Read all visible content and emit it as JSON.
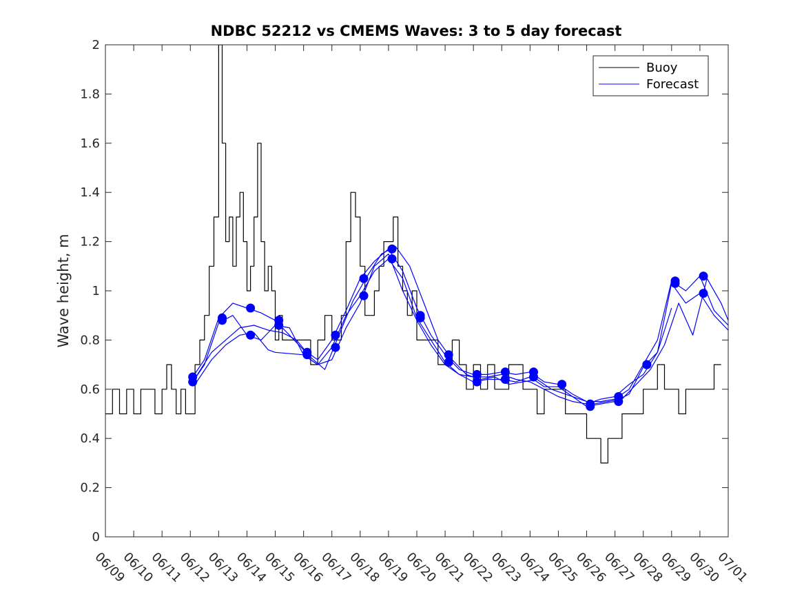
{
  "chart_data": {
    "type": "line",
    "title": "NDBC 52212 vs CMEMS Waves: 3 to 5 day forecast",
    "xlabel": "",
    "ylabel": "Wave height, m",
    "xlim": [
      "06/09",
      "07/01"
    ],
    "ylim": [
      0,
      2
    ],
    "x_ticks": [
      "06/09",
      "06/10",
      "06/11",
      "06/12",
      "06/13",
      "06/14",
      "06/15",
      "06/16",
      "06/17",
      "06/18",
      "06/19",
      "06/20",
      "06/21",
      "06/22",
      "06/23",
      "06/24",
      "06/25",
      "06/26",
      "06/27",
      "06/28",
      "06/29",
      "06/30",
      "07/01"
    ],
    "y_ticks": [
      0,
      0.2,
      0.4,
      0.6,
      0.8,
      1,
      1.2,
      1.4,
      1.6,
      1.8,
      2
    ],
    "grid": false,
    "legend": {
      "position": "top-right",
      "entries": [
        "Buoy",
        "Forecast"
      ]
    },
    "colors": {
      "buoy": "#000000",
      "forecast": "#0000ff"
    },
    "series": [
      {
        "name": "Buoy",
        "style": "step",
        "x": [
          "06/09 00:00",
          "06/09 06:00",
          "06/09 12:00",
          "06/09 18:00",
          "06/10 00:00",
          "06/10 06:00",
          "06/10 12:00",
          "06/10 18:00",
          "06/11 00:00",
          "06/11 04:00",
          "06/11 08:00",
          "06/11 12:00",
          "06/11 16:00",
          "06/11 20:00",
          "06/12 00:00",
          "06/12 04:00",
          "06/12 08:00",
          "06/12 12:00",
          "06/12 16:00",
          "06/12 20:00",
          "06/13 00:00",
          "06/13 03:00",
          "06/13 06:00",
          "06/13 09:00",
          "06/13 12:00",
          "06/13 15:00",
          "06/13 18:00",
          "06/13 21:00",
          "06/14 00:00",
          "06/14 03:00",
          "06/14 06:00",
          "06/14 09:00",
          "06/14 12:00",
          "06/14 15:00",
          "06/14 18:00",
          "06/14 21:00",
          "06/15 00:00",
          "06/15 03:00",
          "06/15 06:00",
          "06/15 09:00",
          "06/15 12:00",
          "06/15 18:00",
          "06/16 00:00",
          "06/16 06:00",
          "06/16 12:00",
          "06/16 18:00",
          "06/17 00:00",
          "06/17 04:00",
          "06/17 08:00",
          "06/17 12:00",
          "06/17 16:00",
          "06/17 20:00",
          "06/18 00:00",
          "06/18 04:00",
          "06/18 08:00",
          "06/18 12:00",
          "06/18 16:00",
          "06/18 20:00",
          "06/19 00:00",
          "06/19 04:00",
          "06/19 08:00",
          "06/19 12:00",
          "06/19 16:00",
          "06/19 20:00",
          "06/20 00:00",
          "06/20 06:00",
          "06/20 12:00",
          "06/20 18:00",
          "06/21 00:00",
          "06/21 06:00",
          "06/21 12:00",
          "06/21 18:00",
          "06/22 00:00",
          "06/22 06:00",
          "06/22 12:00",
          "06/22 18:00",
          "06/23 00:00",
          "06/23 06:00",
          "06/23 12:00",
          "06/23 18:00",
          "06/24 00:00",
          "06/24 06:00",
          "06/24 12:00",
          "06/24 18:00",
          "06/25 00:00",
          "06/25 06:00",
          "06/25 12:00",
          "06/25 18:00",
          "06/26 00:00",
          "06/26 06:00",
          "06/26 12:00",
          "06/26 18:00",
          "06/27 00:00",
          "06/27 06:00",
          "06/27 12:00",
          "06/27 18:00",
          "06/28 00:00",
          "06/28 06:00",
          "06/28 12:00",
          "06/28 18:00",
          "06/29 00:00",
          "06/29 06:00",
          "06/29 12:00",
          "06/29 18:00",
          "06/30 00:00",
          "06/30 06:00",
          "06/30 12:00"
        ],
        "values": [
          0.5,
          0.6,
          0.5,
          0.6,
          0.5,
          0.6,
          0.6,
          0.5,
          0.6,
          0.7,
          0.6,
          0.5,
          0.6,
          0.5,
          0.5,
          0.7,
          0.8,
          0.9,
          1.1,
          1.3,
          2.0,
          1.6,
          1.2,
          1.3,
          1.1,
          1.3,
          1.4,
          1.2,
          1.0,
          1.1,
          1.3,
          1.6,
          1.2,
          1.0,
          1.1,
          1.0,
          0.8,
          0.9,
          0.8,
          0.8,
          0.8,
          0.8,
          0.8,
          0.7,
          0.8,
          0.9,
          0.8,
          0.8,
          0.9,
          1.2,
          1.4,
          1.3,
          1.1,
          0.9,
          0.9,
          1.0,
          1.1,
          1.2,
          1.2,
          1.3,
          1.1,
          1.0,
          0.9,
          1.0,
          0.8,
          0.8,
          0.8,
          0.7,
          0.7,
          0.8,
          0.7,
          0.6,
          0.7,
          0.6,
          0.7,
          0.6,
          0.6,
          0.7,
          0.7,
          0.6,
          0.6,
          0.5,
          0.6,
          0.6,
          0.6,
          0.5,
          0.5,
          0.5,
          0.4,
          0.4,
          0.3,
          0.4,
          0.4,
          0.5,
          0.5,
          0.5,
          0.6,
          0.6,
          0.7,
          0.6,
          0.6,
          0.5,
          0.6,
          0.6,
          0.6,
          0.6,
          0.7
        ]
      },
      {
        "name": "Forecast",
        "x": [
          "06/12 02:00",
          "06/12 12:00",
          "06/13 00:00",
          "06/13 12:00",
          "06/14 00:00",
          "06/14 12:00",
          "06/15 00:00",
          "06/15 12:00",
          "06/16 00:00",
          "06/16 12:00",
          "06/17 00:00",
          "06/17 12:00",
          "06/18 00:00",
          "06/18 12:00",
          "06/19 00:00",
          "06/19 12:00",
          "06/20 00:00",
          "06/20 12:00",
          "06/21 00:00",
          "06/21 12:00",
          "06/22 00:00",
          "06/22 12:00",
          "06/23 00:00",
          "06/23 12:00",
          "06/24 00:00",
          "06/24 12:00",
          "06/25 00:00",
          "06/25 12:00",
          "06/26 00:00",
          "06/26 12:00",
          "06/27 00:00",
          "06/27 12:00",
          "06/28 00:00",
          "06/28 12:00",
          "06/29 00:00",
          "06/29 12:00",
          "06/30 00:00",
          "06/30 12:00",
          "07/01 00:00"
        ],
        "values": [
          0.65,
          0.72,
          0.89,
          0.95,
          0.93,
          0.91,
          0.88,
          0.82,
          0.76,
          0.72,
          0.8,
          0.92,
          1.05,
          1.12,
          1.17,
          1.08,
          0.93,
          0.82,
          0.74,
          0.68,
          0.66,
          0.66,
          0.67,
          0.66,
          0.67,
          0.63,
          0.62,
          0.58,
          0.55,
          0.55,
          0.56,
          0.6,
          0.7,
          0.8,
          1.04,
          1.0,
          1.06,
          0.92,
          0.86
        ]
      },
      {
        "name": "Forecast",
        "x": [
          "06/12 02:00",
          "06/12 12:00",
          "06/13 00:00",
          "06/13 12:00",
          "06/14 00:00",
          "06/14 12:00",
          "06/15 00:00",
          "06/15 12:00",
          "06/16 00:00",
          "06/16 12:00",
          "06/17 00:00",
          "06/17 12:00",
          "06/18 00:00",
          "06/18 12:00",
          "06/19 00:00",
          "06/19 12:00",
          "06/20 00:00",
          "06/20 12:00",
          "06/21 00:00",
          "06/21 12:00",
          "06/22 00:00",
          "06/22 12:00",
          "06/23 00:00",
          "06/23 12:00",
          "06/24 00:00",
          "06/24 12:00",
          "06/25 00:00",
          "06/25 12:00",
          "06/26 00:00",
          "06/26 12:00",
          "06/27 00:00",
          "06/27 12:00",
          "06/28 00:00",
          "06/28 12:00",
          "06/29 00:00",
          "06/29 12:00",
          "06/30 00:00",
          "06/30 12:00",
          "07/01 00:00"
        ],
        "values": [
          0.63,
          0.7,
          0.87,
          0.9,
          0.82,
          0.8,
          0.86,
          0.85,
          0.74,
          0.7,
          0.77,
          0.9,
          0.98,
          1.08,
          1.13,
          1.05,
          0.89,
          0.8,
          0.71,
          0.66,
          0.63,
          0.64,
          0.64,
          0.63,
          0.65,
          0.61,
          0.61,
          0.57,
          0.53,
          0.54,
          0.55,
          0.58,
          0.69,
          0.75,
          1.03,
          0.95,
          0.99,
          0.9,
          0.84
        ]
      },
      {
        "name": "Forecast",
        "x": [
          "06/12 04:00",
          "06/12 18:00",
          "06/13 06:00",
          "06/13 18:00",
          "06/14 06:00",
          "06/14 18:00",
          "06/15 00:00",
          "06/16 00:00",
          "06/16 12:00",
          "06/17 00:00",
          "06/17 12:00",
          "06/18 00:00",
          "06/18 12:00",
          "06/19 00:00",
          "06/19 12:00",
          "06/20 00:00",
          "06/20 12:00",
          "06/21 00:00",
          "06/21 12:00",
          "06/22 00:00",
          "06/22 12:00",
          "06/23 00:00",
          "06/23 12:00",
          "06/24 00:00",
          "06/24 12:00",
          "06/25 00:00",
          "06/25 12:00",
          "06/26 00:00",
          "06/26 12:00",
          "06/27 00:00",
          "06/27 12:00",
          "06/28 00:00",
          "06/28 12:00",
          "06/29 00:00"
        ],
        "values": [
          0.62,
          0.72,
          0.78,
          0.82,
          0.83,
          0.76,
          0.75,
          0.74,
          0.7,
          0.72,
          0.85,
          0.95,
          1.1,
          1.15,
          1.0,
          0.88,
          0.78,
          0.7,
          0.66,
          0.65,
          0.65,
          0.66,
          0.64,
          0.63,
          0.6,
          0.57,
          0.55,
          0.54,
          0.56,
          0.57,
          0.62,
          0.66,
          0.75,
          0.93
        ]
      },
      {
        "name": "Forecast",
        "x": [
          "06/12 06:00",
          "06/12 18:00",
          "06/13 06:00",
          "06/13 18:00",
          "06/14 06:00",
          "06/14 18:00",
          "06/15 06:00",
          "06/15 18:00",
          "06/16 06:00",
          "06/16 18:00",
          "06/17 06:00",
          "06/17 18:00",
          "06/18 06:00",
          "06/18 18:00",
          "06/19 06:00",
          "06/19 18:00",
          "06/20 06:00",
          "06/20 18:00",
          "06/21 06:00",
          "06/21 18:00",
          "06/22 06:00",
          "06/22 18:00",
          "06/23 06:00",
          "06/23 18:00",
          "06/24 06:00",
          "06/24 18:00",
          "06/25 06:00",
          "06/25 18:00",
          "06/26 06:00",
          "06/26 18:00",
          "06/27 06:00",
          "06/27 18:00",
          "06/28 06:00",
          "06/28 18:00",
          "06/29 06:00",
          "06/29 18:00",
          "06/30 06:00",
          "06/30 18:00",
          "07/01 00:00"
        ],
        "values": [
          0.66,
          0.75,
          0.8,
          0.85,
          0.86,
          0.84,
          0.83,
          0.8,
          0.73,
          0.68,
          0.82,
          0.96,
          1.06,
          1.15,
          1.18,
          1.1,
          0.95,
          0.8,
          0.72,
          0.66,
          0.64,
          0.65,
          0.62,
          0.63,
          0.64,
          0.6,
          0.58,
          0.56,
          0.54,
          0.55,
          0.56,
          0.62,
          0.68,
          0.78,
          0.95,
          0.82,
          1.05,
          0.95,
          0.88
        ]
      }
    ],
    "markers": {
      "x": [
        "06/12 02:00",
        "06/12 02:00",
        "06/13 03:00",
        "06/13 03:00",
        "06/14 03:00",
        "06/14 03:00",
        "06/15 03:00",
        "06/15 03:00",
        "06/16 03:00",
        "06/16 03:00",
        "06/17 03:00",
        "06/17 03:00",
        "06/18 03:00",
        "06/18 03:00",
        "06/19 03:00",
        "06/19 03:00",
        "06/20 03:00",
        "06/20 03:00",
        "06/21 03:00",
        "06/21 03:00",
        "06/22 03:00",
        "06/22 03:00",
        "06/23 03:00",
        "06/23 03:00",
        "06/24 03:00",
        "06/24 03:00",
        "06/25 03:00",
        "06/25 03:00",
        "06/26 03:00",
        "06/26 03:00",
        "06/27 03:00",
        "06/27 03:00",
        "06/28 03:00",
        "06/28 03:00",
        "06/29 03:00",
        "06/29 03:00",
        "06/30 03:00",
        "06/30 03:00"
      ],
      "values": [
        0.65,
        0.63,
        0.89,
        0.88,
        0.93,
        0.82,
        0.88,
        0.86,
        0.75,
        0.74,
        0.82,
        0.77,
        1.05,
        0.98,
        1.17,
        1.13,
        0.9,
        0.89,
        0.74,
        0.71,
        0.66,
        0.63,
        0.67,
        0.64,
        0.67,
        0.65,
        0.62,
        0.62,
        0.54,
        0.53,
        0.57,
        0.55,
        0.7,
        0.7,
        1.04,
        1.03,
        1.06,
        0.99
      ]
    }
  }
}
